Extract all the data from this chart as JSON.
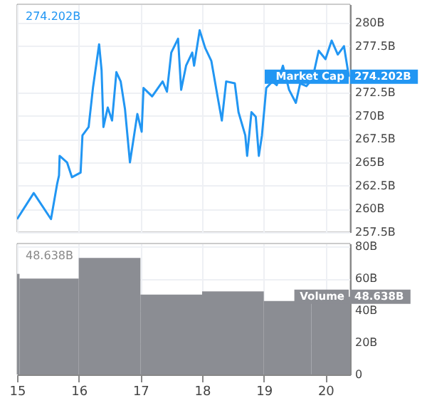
{
  "chart_data": [
    {
      "type": "line",
      "tick_labels": "y",
      "grid": true,
      "xlim": [
        15,
        20.4
      ],
      "xticks": [
        15,
        16,
        17,
        18,
        19,
        20
      ],
      "ylim": [
        257.5,
        282
      ],
      "yticks": [
        {
          "value": 257.5,
          "label": "257.5B"
        },
        {
          "value": 260,
          "label": "260B"
        },
        {
          "value": 262.5,
          "label": "262.5B"
        },
        {
          "value": 265,
          "label": "265B"
        },
        {
          "value": 267.5,
          "label": "267.5B"
        },
        {
          "value": 270,
          "label": "270B"
        },
        {
          "value": 272.5,
          "label": "272.5B"
        },
        {
          "value": 277.5,
          "label": "277.5B"
        },
        {
          "value": 280,
          "label": "280B"
        }
      ],
      "annotations": [
        "274.202B",
        "274.202B"
      ],
      "series": [
        {
          "name": "Market Cap",
          "color": "#2196f3",
          "x": [
            15.0,
            15.27,
            15.55,
            15.65,
            15.68,
            15.69,
            15.81,
            15.89,
            16.03,
            16.06,
            16.16,
            16.23,
            16.33,
            16.37,
            16.4,
            16.47,
            16.54,
            16.61,
            16.68,
            16.75,
            16.83,
            16.95,
            17.02,
            17.05,
            17.19,
            17.36,
            17.43,
            17.5,
            17.61,
            17.66,
            17.74,
            17.84,
            17.87,
            17.96,
            18.05,
            18.15,
            18.25,
            18.32,
            18.39,
            18.53,
            18.59,
            18.7,
            18.73,
            18.8,
            18.87,
            18.92,
            18.97,
            19.04,
            19.14,
            19.21,
            19.31,
            19.41,
            19.52,
            19.59,
            19.69,
            19.79,
            19.89,
            20.0,
            20.1,
            20.2,
            20.3,
            20.38
          ],
          "values": [
            258.9,
            261.7,
            258.9,
            262.7,
            263.6,
            265.7,
            265.0,
            263.4,
            263.9,
            267.9,
            268.8,
            273.0,
            277.7,
            274.9,
            268.8,
            270.9,
            269.5,
            274.7,
            273.7,
            270.7,
            265.0,
            270.2,
            268.3,
            273.0,
            272.1,
            273.7,
            272.6,
            276.8,
            278.3,
            272.8,
            275.4,
            276.8,
            275.4,
            279.2,
            277.3,
            275.9,
            272.1,
            269.5,
            273.7,
            273.5,
            270.4,
            267.9,
            265.7,
            270.4,
            269.9,
            265.7,
            267.9,
            273.0,
            273.7,
            273.3,
            275.4,
            272.8,
            271.4,
            273.5,
            273.2,
            274.0,
            277.0,
            276.1,
            278.1,
            276.6,
            277.5,
            274.202
          ]
        }
      ]
    },
    {
      "type": "histogram",
      "grid": true,
      "xlim": [
        15,
        20.4
      ],
      "xticks": [
        15,
        16,
        17,
        18,
        19,
        20
      ],
      "ylim": [
        0,
        82
      ],
      "yticks": [
        {
          "value": 0,
          "label": "0"
        },
        {
          "value": 20,
          "label": "20B"
        },
        {
          "value": 40,
          "label": "40B"
        },
        {
          "value": 60,
          "label": "60B"
        },
        {
          "value": 80,
          "label": "80B"
        }
      ],
      "annotations": [
        "48.638B",
        "48.638B"
      ],
      "bins": [
        15,
        15.04,
        16,
        17,
        18,
        19,
        19.77,
        20.4
      ],
      "series": [
        {
          "name": "Volume",
          "color": "#8b8d93",
          "values": [
            63,
            60,
            73,
            50,
            52,
            46,
            48.638
          ]
        }
      ]
    }
  ]
}
